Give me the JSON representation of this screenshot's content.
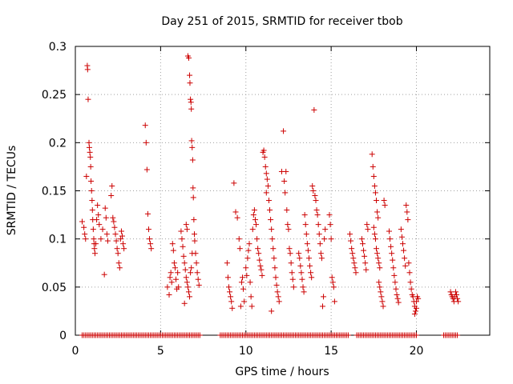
{
  "chart_data": {
    "type": "scatter",
    "title": "Day 251 of 2015, SRMTID for receiver tbob",
    "xlabel": "GPS time / hours",
    "ylabel": "SRMTID / TECUs",
    "xlim": [
      0,
      24.3
    ],
    "ylim": [
      0,
      0.3
    ],
    "x_ticks": [
      0,
      5,
      10,
      15,
      20
    ],
    "y_ticks": [
      0,
      0.05,
      0.1,
      0.15,
      0.2,
      0.25,
      0.3
    ],
    "x_tick_labels": [
      "0",
      "5",
      "10",
      "15",
      "20"
    ],
    "y_tick_labels": [
      "0",
      "0.05",
      "0.1",
      "0.15",
      "0.2",
      "0.25",
      "0.3"
    ],
    "grid": true,
    "marker": "+",
    "color": "#cc0000",
    "series": [
      {
        "name": "SRMTID",
        "points": [
          [
            0.4,
            0.118
          ],
          [
            0.5,
            0.112
          ],
          [
            0.55,
            0.105
          ],
          [
            0.6,
            0.1
          ],
          [
            0.65,
            0.165
          ],
          [
            0.7,
            0.28
          ],
          [
            0.72,
            0.276
          ],
          [
            0.75,
            0.245
          ],
          [
            0.8,
            0.2
          ],
          [
            0.82,
            0.195
          ],
          [
            0.85,
            0.19
          ],
          [
            0.88,
            0.185
          ],
          [
            0.9,
            0.175
          ],
          [
            0.92,
            0.16
          ],
          [
            0.95,
            0.15
          ],
          [
            0.98,
            0.14
          ],
          [
            1.0,
            0.13
          ],
          [
            1.02,
            0.12
          ],
          [
            1.05,
            0.11
          ],
          [
            1.08,
            0.1
          ],
          [
            1.1,
            0.095
          ],
          [
            1.12,
            0.09
          ],
          [
            1.15,
            0.085
          ],
          [
            1.2,
            0.095
          ],
          [
            1.25,
            0.12
          ],
          [
            1.3,
            0.135
          ],
          [
            1.35,
            0.125
          ],
          [
            1.4,
            0.115
          ],
          [
            1.5,
            0.1
          ],
          [
            1.6,
            0.11
          ],
          [
            1.7,
            0.063
          ],
          [
            1.75,
            0.132
          ],
          [
            1.8,
            0.122
          ],
          [
            1.85,
            0.105
          ],
          [
            1.9,
            0.098
          ],
          [
            2.1,
            0.145
          ],
          [
            2.15,
            0.155
          ],
          [
            2.2,
            0.122
          ],
          [
            2.25,
            0.118
          ],
          [
            2.3,
            0.112
          ],
          [
            2.35,
            0.105
          ],
          [
            2.4,
            0.098
          ],
          [
            2.45,
            0.09
          ],
          [
            2.5,
            0.085
          ],
          [
            2.55,
            0.075
          ],
          [
            2.6,
            0.07
          ],
          [
            2.65,
            0.1
          ],
          [
            2.7,
            0.108
          ],
          [
            2.75,
            0.103
          ],
          [
            2.8,
            0.095
          ],
          [
            2.85,
            0.09
          ],
          [
            4.1,
            0.218
          ],
          [
            4.15,
            0.2
          ],
          [
            4.2,
            0.172
          ],
          [
            4.25,
            0.126
          ],
          [
            4.3,
            0.11
          ],
          [
            4.35,
            0.1
          ],
          [
            4.4,
            0.095
          ],
          [
            4.45,
            0.09
          ],
          [
            5.4,
            0.05
          ],
          [
            5.5,
            0.042
          ],
          [
            5.55,
            0.06
          ],
          [
            5.6,
            0.065
          ],
          [
            5.65,
            0.055
          ],
          [
            5.7,
            0.095
          ],
          [
            5.75,
            0.088
          ],
          [
            5.8,
            0.075
          ],
          [
            5.85,
            0.07
          ],
          [
            5.9,
            0.058
          ],
          [
            5.95,
            0.048
          ],
          [
            6.0,
            0.065
          ],
          [
            6.05,
            0.05
          ],
          [
            6.2,
            0.108
          ],
          [
            6.25,
            0.1
          ],
          [
            6.3,
            0.092
          ],
          [
            6.35,
            0.082
          ],
          [
            6.4,
            0.075
          ],
          [
            6.45,
            0.068
          ],
          [
            6.5,
            0.06
          ],
          [
            6.55,
            0.055
          ],
          [
            6.6,
            0.05
          ],
          [
            6.65,
            0.045
          ],
          [
            6.7,
            0.04
          ],
          [
            6.75,
            0.065
          ],
          [
            6.8,
            0.07
          ],
          [
            6.85,
            0.085
          ],
          [
            6.4,
            0.033
          ],
          [
            6.5,
            0.115
          ],
          [
            6.55,
            0.11
          ],
          [
            6.6,
            0.29
          ],
          [
            6.65,
            0.288
          ],
          [
            6.7,
            0.27
          ],
          [
            6.72,
            0.262
          ],
          [
            6.75,
            0.245
          ],
          [
            6.78,
            0.242
          ],
          [
            6.8,
            0.235
          ],
          [
            6.82,
            0.202
          ],
          [
            6.85,
            0.195
          ],
          [
            6.88,
            0.182
          ],
          [
            6.9,
            0.153
          ],
          [
            6.92,
            0.143
          ],
          [
            6.95,
            0.12
          ],
          [
            6.98,
            0.105
          ],
          [
            7.0,
            0.098
          ],
          [
            7.05,
            0.085
          ],
          [
            7.1,
            0.075
          ],
          [
            7.15,
            0.065
          ],
          [
            7.2,
            0.058
          ],
          [
            7.25,
            0.052
          ],
          [
            8.9,
            0.075
          ],
          [
            8.95,
            0.06
          ],
          [
            9.0,
            0.05
          ],
          [
            9.05,
            0.045
          ],
          [
            9.1,
            0.04
          ],
          [
            9.15,
            0.035
          ],
          [
            9.2,
            0.028
          ],
          [
            9.3,
            0.158
          ],
          [
            9.4,
            0.128
          ],
          [
            9.5,
            0.122
          ],
          [
            9.6,
            0.1
          ],
          [
            9.65,
            0.09
          ],
          [
            9.7,
            0.03
          ],
          [
            9.75,
            0.055
          ],
          [
            9.8,
            0.06
          ],
          [
            9.85,
            0.048
          ],
          [
            9.9,
            0.035
          ],
          [
            10.0,
            0.07
          ],
          [
            10.05,
            0.062
          ],
          [
            10.1,
            0.08
          ],
          [
            10.15,
            0.088
          ],
          [
            10.2,
            0.095
          ],
          [
            10.25,
            0.055
          ],
          [
            10.3,
            0.04
          ],
          [
            10.35,
            0.03
          ],
          [
            10.4,
            0.11
          ],
          [
            10.45,
            0.125
          ],
          [
            10.5,
            0.13
          ],
          [
            10.55,
            0.12
          ],
          [
            10.6,
            0.115
          ],
          [
            10.65,
            0.1
          ],
          [
            10.7,
            0.09
          ],
          [
            10.75,
            0.085
          ],
          [
            10.8,
            0.078
          ],
          [
            10.85,
            0.072
          ],
          [
            10.9,
            0.068
          ],
          [
            10.95,
            0.062
          ],
          [
            11.0,
            0.19
          ],
          [
            11.05,
            0.192
          ],
          [
            11.1,
            0.185
          ],
          [
            11.15,
            0.175
          ],
          [
            11.2,
            0.168
          ],
          [
            11.25,
            0.162
          ],
          [
            11.3,
            0.155
          ],
          [
            11.35,
            0.14
          ],
          [
            11.4,
            0.13
          ],
          [
            11.45,
            0.12
          ],
          [
            11.5,
            0.11
          ],
          [
            11.55,
            0.1
          ],
          [
            11.6,
            0.09
          ],
          [
            11.65,
            0.08
          ],
          [
            11.7,
            0.07
          ],
          [
            11.75,
            0.06
          ],
          [
            11.8,
            0.052
          ],
          [
            11.85,
            0.045
          ],
          [
            11.9,
            0.04
          ],
          [
            11.95,
            0.035
          ],
          [
            11.5,
            0.025
          ],
          [
            11.2,
            0.148
          ],
          [
            12.1,
            0.17
          ],
          [
            12.2,
            0.212
          ],
          [
            12.25,
            0.16
          ],
          [
            12.3,
            0.148
          ],
          [
            12.35,
            0.17
          ],
          [
            12.4,
            0.13
          ],
          [
            12.45,
            0.115
          ],
          [
            12.5,
            0.11
          ],
          [
            12.55,
            0.09
          ],
          [
            12.6,
            0.085
          ],
          [
            12.65,
            0.075
          ],
          [
            12.7,
            0.065
          ],
          [
            12.75,
            0.058
          ],
          [
            12.8,
            0.05
          ],
          [
            13.1,
            0.085
          ],
          [
            13.15,
            0.08
          ],
          [
            13.2,
            0.072
          ],
          [
            13.25,
            0.065
          ],
          [
            13.3,
            0.058
          ],
          [
            13.35,
            0.05
          ],
          [
            13.4,
            0.045
          ],
          [
            13.45,
            0.125
          ],
          [
            13.5,
            0.115
          ],
          [
            13.55,
            0.105
          ],
          [
            13.6,
            0.095
          ],
          [
            13.65,
            0.088
          ],
          [
            13.7,
            0.08
          ],
          [
            13.75,
            0.072
          ],
          [
            13.8,
            0.065
          ],
          [
            13.85,
            0.06
          ],
          [
            13.9,
            0.155
          ],
          [
            13.95,
            0.15
          ],
          [
            14.0,
            0.234
          ],
          [
            14.05,
            0.145
          ],
          [
            14.1,
            0.14
          ],
          [
            14.15,
            0.13
          ],
          [
            14.2,
            0.125
          ],
          [
            14.25,
            0.115
          ],
          [
            14.3,
            0.105
          ],
          [
            14.35,
            0.095
          ],
          [
            14.4,
            0.085
          ],
          [
            14.45,
            0.08
          ],
          [
            14.5,
            0.03
          ],
          [
            14.55,
            0.04
          ],
          [
            14.6,
            0.1
          ],
          [
            14.65,
            0.11
          ],
          [
            14.9,
            0.125
          ],
          [
            14.95,
            0.115
          ],
          [
            15.0,
            0.1
          ],
          [
            15.05,
            0.06
          ],
          [
            15.1,
            0.055
          ],
          [
            15.15,
            0.05
          ],
          [
            15.2,
            0.035
          ],
          [
            16.1,
            0.105
          ],
          [
            16.15,
            0.098
          ],
          [
            16.2,
            0.09
          ],
          [
            16.25,
            0.085
          ],
          [
            16.3,
            0.08
          ],
          [
            16.35,
            0.075
          ],
          [
            16.4,
            0.07
          ],
          [
            16.45,
            0.065
          ],
          [
            16.8,
            0.1
          ],
          [
            16.85,
            0.095
          ],
          [
            16.9,
            0.088
          ],
          [
            16.95,
            0.082
          ],
          [
            17.0,
            0.075
          ],
          [
            17.05,
            0.068
          ],
          [
            17.1,
            0.115
          ],
          [
            17.15,
            0.11
          ],
          [
            17.5,
            0.112
          ],
          [
            17.55,
            0.105
          ],
          [
            17.6,
            0.1
          ],
          [
            17.65,
            0.09
          ],
          [
            17.7,
            0.085
          ],
          [
            17.75,
            0.08
          ],
          [
            17.8,
            0.075
          ],
          [
            17.85,
            0.07
          ],
          [
            17.4,
            0.188
          ],
          [
            17.45,
            0.175
          ],
          [
            17.5,
            0.165
          ],
          [
            17.55,
            0.155
          ],
          [
            17.6,
            0.148
          ],
          [
            17.65,
            0.14
          ],
          [
            17.7,
            0.128
          ],
          [
            17.75,
            0.122
          ],
          [
            17.8,
            0.055
          ],
          [
            17.85,
            0.05
          ],
          [
            17.9,
            0.045
          ],
          [
            17.95,
            0.04
          ],
          [
            18.0,
            0.035
          ],
          [
            18.05,
            0.03
          ],
          [
            18.1,
            0.14
          ],
          [
            18.15,
            0.135
          ],
          [
            18.4,
            0.108
          ],
          [
            18.45,
            0.1
          ],
          [
            18.5,
            0.092
          ],
          [
            18.55,
            0.085
          ],
          [
            18.6,
            0.078
          ],
          [
            18.65,
            0.07
          ],
          [
            18.7,
            0.062
          ],
          [
            18.75,
            0.055
          ],
          [
            18.8,
            0.048
          ],
          [
            18.85,
            0.042
          ],
          [
            18.9,
            0.038
          ],
          [
            18.95,
            0.034
          ],
          [
            19.1,
            0.11
          ],
          [
            19.15,
            0.102
          ],
          [
            19.2,
            0.095
          ],
          [
            19.25,
            0.088
          ],
          [
            19.3,
            0.08
          ],
          [
            19.35,
            0.072
          ],
          [
            19.4,
            0.135
          ],
          [
            19.45,
            0.128
          ],
          [
            19.5,
            0.12
          ],
          [
            19.55,
            0.075
          ],
          [
            19.6,
            0.065
          ],
          [
            19.65,
            0.055
          ],
          [
            19.7,
            0.048
          ],
          [
            19.75,
            0.042
          ],
          [
            19.8,
            0.04
          ],
          [
            19.85,
            0.035
          ],
          [
            19.9,
            0.03
          ],
          [
            19.95,
            0.025
          ],
          [
            20.0,
            0.035
          ],
          [
            20.05,
            0.04
          ],
          [
            20.1,
            0.038
          ],
          [
            19.9,
            0.022
          ],
          [
            20.0,
            0.028
          ],
          [
            22.0,
            0.045
          ],
          [
            22.05,
            0.042
          ],
          [
            22.1,
            0.04
          ],
          [
            22.15,
            0.038
          ],
          [
            22.2,
            0.035
          ],
          [
            22.25,
            0.04
          ],
          [
            22.3,
            0.045
          ],
          [
            22.35,
            0.042
          ],
          [
            22.4,
            0.038
          ],
          [
            22.45,
            0.035
          ]
        ],
        "baseline_zero_segments": [
          [
            0.4,
            7.3
          ],
          [
            8.5,
            12.0
          ],
          [
            12.1,
            16.0
          ],
          [
            16.5,
            20.0
          ],
          [
            21.6,
            22.4
          ]
        ]
      }
    ]
  }
}
